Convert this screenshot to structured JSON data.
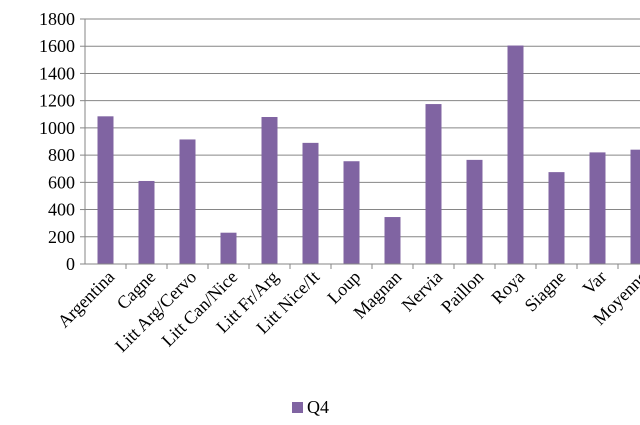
{
  "chart_data": {
    "type": "bar",
    "categories": [
      "Argentina",
      "Cagne",
      "Litt Arg/Cervo",
      "Litt Can/Nice",
      "Litt Fr/Arg",
      "Litt Nice/It",
      "Loup",
      "Magnan",
      "Nervia",
      "Paillon",
      "Roya",
      "Siagne",
      "Var",
      "Moyenne"
    ],
    "series": [
      {
        "name": "Q4",
        "color": "#8064A2",
        "values": [
          1085,
          610,
          915,
          230,
          1080,
          890,
          755,
          345,
          1175,
          765,
          1605,
          675,
          820,
          840
        ]
      }
    ],
    "ylim": [
      0,
      1800
    ],
    "yticks": [
      0,
      200,
      400,
      600,
      800,
      1000,
      1200,
      1400,
      1600,
      1800
    ],
    "grid": true,
    "legend_position": "bottom"
  }
}
